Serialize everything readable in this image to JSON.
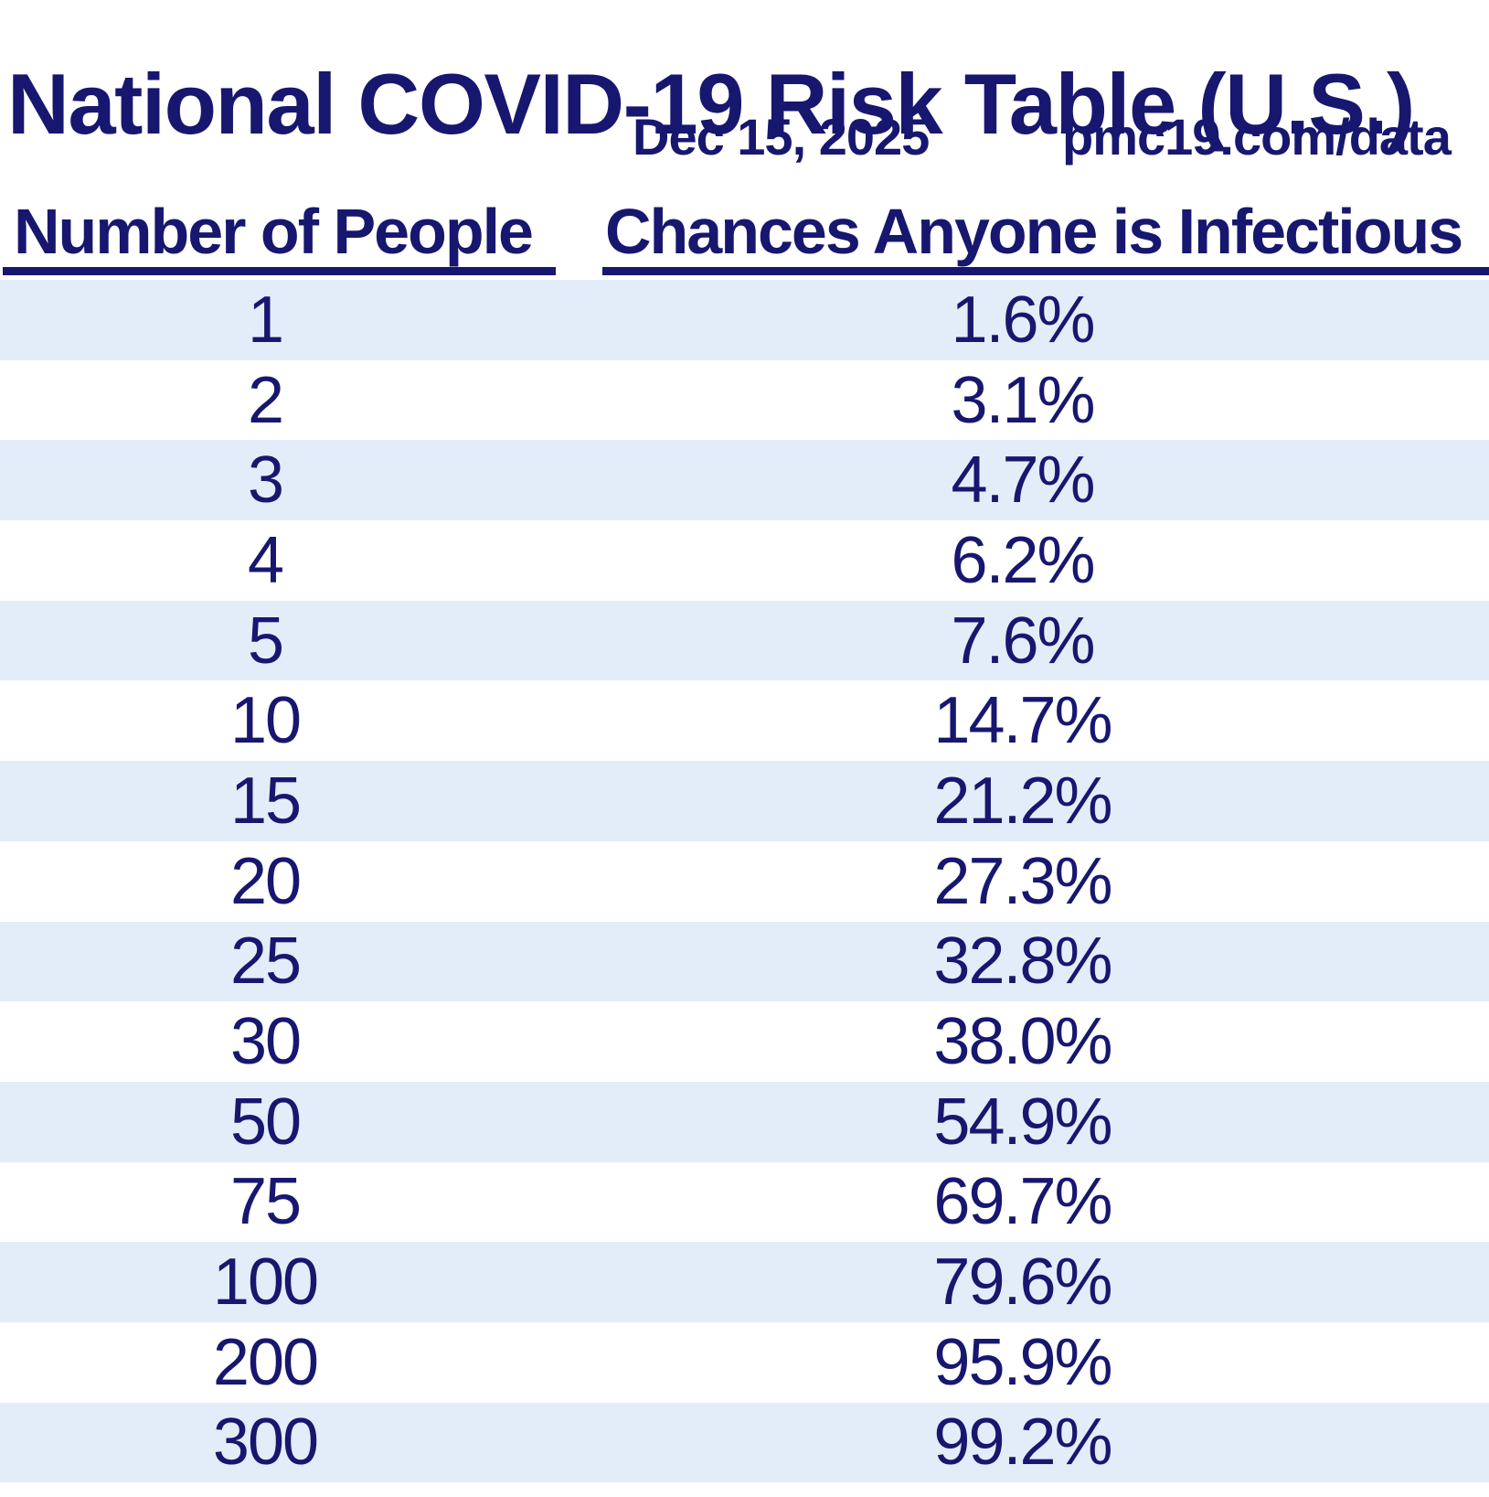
{
  "title": "National COVID-19 Risk Table (U.S.)",
  "subtitle": {
    "date": "Dec 15, 2025",
    "source": "pmc19.com/data"
  },
  "table": {
    "headers": {
      "people": "Number of People",
      "chance": "Chances Anyone is Infectious"
    },
    "rows": [
      {
        "people": "1",
        "chance": "1.6%"
      },
      {
        "people": "2",
        "chance": "3.1%"
      },
      {
        "people": "3",
        "chance": "4.7%"
      },
      {
        "people": "4",
        "chance": "6.2%"
      },
      {
        "people": "5",
        "chance": "7.6%"
      },
      {
        "people": "10",
        "chance": "14.7%"
      },
      {
        "people": "15",
        "chance": "21.2%"
      },
      {
        "people": "20",
        "chance": "27.3%"
      },
      {
        "people": "25",
        "chance": "32.8%"
      },
      {
        "people": "30",
        "chance": "38.0%"
      },
      {
        "people": "50",
        "chance": "54.9%"
      },
      {
        "people": "75",
        "chance": "69.7%"
      },
      {
        "people": "100",
        "chance": "79.6%"
      },
      {
        "people": "200",
        "chance": "95.9%"
      },
      {
        "people": "300",
        "chance": "99.2%"
      }
    ]
  },
  "colors": {
    "navy_text": "#171770",
    "row_alt_blue": "#e3edf9",
    "background": "#ffffff"
  },
  "chart_data": {
    "type": "table",
    "title": "National COVID-19 Risk Table (U.S.)",
    "date": "Dec 15, 2025",
    "source": "pmc19.com/data",
    "columns": [
      "Number of People",
      "Chances Anyone is Infectious"
    ],
    "people": [
      1,
      2,
      3,
      4,
      5,
      10,
      15,
      20,
      25,
      30,
      50,
      75,
      100,
      200,
      300
    ],
    "chance_percent": [
      1.6,
      3.1,
      4.7,
      6.2,
      7.6,
      14.7,
      21.2,
      27.3,
      32.8,
      38.0,
      54.9,
      69.7,
      79.6,
      95.9,
      99.2
    ],
    "layout": "two-column data table, alternating pale-blue row banding, navy text on white"
  }
}
